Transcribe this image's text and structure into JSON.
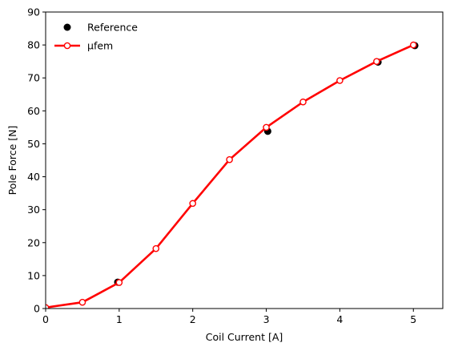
{
  "chart_data": {
    "type": "line",
    "xlabel": "Coil Current [A]",
    "ylabel": "Pole Force [N]",
    "xlim": [
      0,
      5.4
    ],
    "ylim": [
      0,
      90
    ],
    "xticks": [
      0,
      1,
      2,
      3,
      4,
      5
    ],
    "yticks": [
      0,
      10,
      20,
      30,
      40,
      50,
      60,
      70,
      80,
      90
    ],
    "grid": false,
    "legend_position": "top-left",
    "series": [
      {
        "name": "Reference",
        "style": "markers",
        "color": "#000000",
        "x": [
          0.0,
          0.98,
          3.02,
          4.52,
          5.02
        ],
        "y": [
          0.0,
          8.0,
          53.8,
          74.8,
          79.8
        ]
      },
      {
        "name": "μfem",
        "style": "line-open-markers",
        "color": "#ff0000",
        "x": [
          0.0,
          0.5,
          1.0,
          1.5,
          2.0,
          2.5,
          3.0,
          3.5,
          4.0,
          4.5,
          5.0
        ],
        "y": [
          0.3,
          1.9,
          7.9,
          18.2,
          31.9,
          45.2,
          55.0,
          62.7,
          69.2,
          75.0,
          80.0
        ]
      }
    ]
  }
}
